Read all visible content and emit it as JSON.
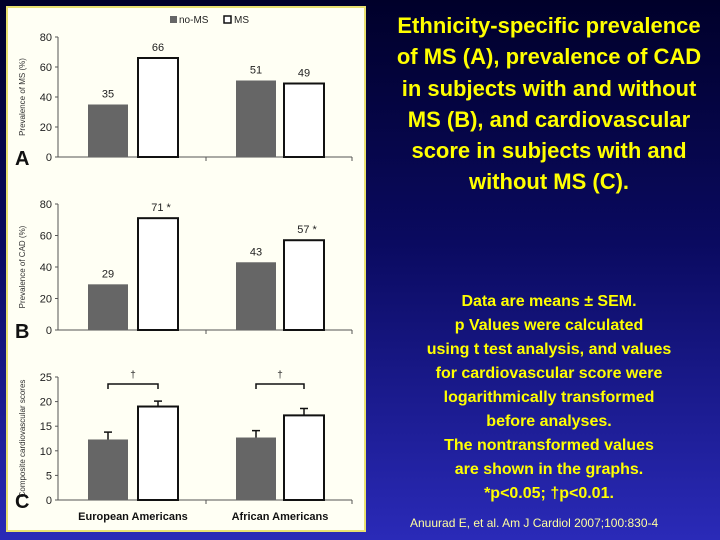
{
  "slide": {
    "title": "Ethnicity-specific prevalence of MS (A), prevalence of CAD in subjects with and without MS (B), and cardiovascular score in subjects with and without MS (C).",
    "notes": [
      "Data are means ± SEM.",
      "p Values were calculated",
      "using t test analysis, and values",
      "for cardiovascular score were",
      "logarithmically transformed",
      "before analyses.",
      "The nontransformed values",
      "are shown in the graphs.",
      "*p<0.05; †p<0.01."
    ],
    "citation": "Anuurad E, et al. Am J Cardiol 2007;100:830-4"
  },
  "colors": {
    "no_ms": "#666666",
    "ms": "#ffffff",
    "text": "#ffff00"
  },
  "chart_data": [
    {
      "type": "bar",
      "panel": "A",
      "ylabel": "Prevalence of MS (%)",
      "ylim": [
        0,
        80
      ],
      "yticks": [
        0,
        20,
        40,
        60,
        80
      ],
      "categories": [
        "European Americans",
        "African Americans"
      ],
      "legend": [
        "no-MS",
        "MS"
      ],
      "legend_position": "top-center",
      "series": [
        {
          "name": "no-MS",
          "values": [
            35,
            51
          ],
          "labels": [
            "35",
            "51"
          ]
        },
        {
          "name": "MS",
          "values": [
            66,
            49
          ],
          "labels": [
            "66",
            "49"
          ]
        }
      ]
    },
    {
      "type": "bar",
      "panel": "B",
      "ylabel": "Prevalence of CAD (%)",
      "ylim": [
        0,
        80
      ],
      "yticks": [
        0,
        20,
        40,
        60,
        80
      ],
      "categories": [
        "European Americans",
        "African Americans"
      ],
      "series": [
        {
          "name": "no-MS",
          "values": [
            29,
            43
          ],
          "labels": [
            "29",
            "43"
          ]
        },
        {
          "name": "MS",
          "values": [
            71,
            57
          ],
          "labels": [
            "71 *",
            "57 *"
          ]
        }
      ]
    },
    {
      "type": "bar",
      "panel": "C",
      "ylabel": "Composite cardiovascular scores",
      "ylim": [
        0,
        25
      ],
      "yticks": [
        0,
        5,
        10,
        15,
        20,
        25
      ],
      "categories": [
        "European Americans",
        "African Americans"
      ],
      "series": [
        {
          "name": "no-MS",
          "values": [
            12.3,
            12.7
          ],
          "errors": [
            1.5,
            1.4
          ]
        },
        {
          "name": "MS",
          "values": [
            19.0,
            17.2
          ],
          "errors": [
            1.1,
            1.4
          ]
        }
      ],
      "annotations": [
        "†",
        "†"
      ]
    }
  ]
}
